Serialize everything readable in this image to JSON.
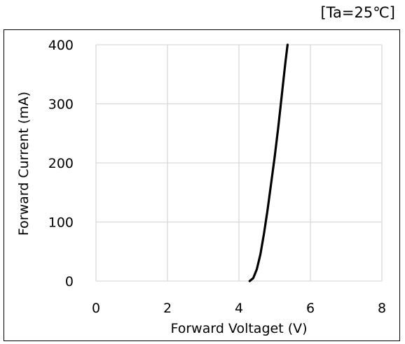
{
  "condition_label": "[Ta=25℃]",
  "chart_data": {
    "type": "line",
    "title": "",
    "xlabel": "Forward Voltaget (V)",
    "ylabel": "Forward Current (mA)",
    "xlim": [
      0,
      8
    ],
    "ylim": [
      0,
      400
    ],
    "xticks": [
      0,
      2,
      4,
      6,
      8
    ],
    "yticks": [
      0,
      100,
      200,
      300,
      400
    ],
    "grid": true,
    "legend": "none",
    "series": [
      {
        "color": "#000000",
        "x": [
          4.3,
          4.4,
          4.5,
          4.6,
          4.7,
          4.8,
          4.9,
          5.0,
          5.1,
          5.2,
          5.3,
          5.36
        ],
        "y": [
          0,
          5,
          20,
          45,
          80,
          120,
          165,
          210,
          260,
          315,
          370,
          400
        ]
      }
    ]
  }
}
